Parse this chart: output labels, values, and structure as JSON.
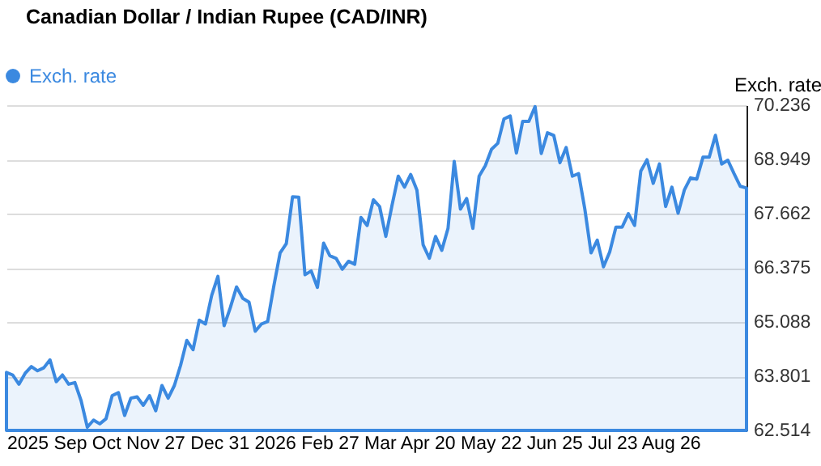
{
  "chart_data": {
    "type": "area",
    "title": "Canadian Dollar / Indian Rupee (CAD/INR)",
    "xlabel": "2025 Sep Oct Nov 27 Dec 31 2026 Feb 27 Mar Apr 20 May 22 Jun 25 Jul 23 Aug 26",
    "ylabel": "Exch. rate",
    "categories": [
      null,
      null,
      null,
      null,
      null,
      null,
      null,
      null,
      null,
      null,
      null,
      null,
      null,
      null,
      null,
      null,
      null,
      null,
      null,
      null,
      null,
      null,
      null,
      null,
      null,
      null,
      null,
      null,
      null,
      null,
      null,
      null,
      null,
      null,
      null,
      null,
      null,
      null,
      null,
      null,
      null,
      null,
      null,
      null,
      null,
      null,
      null,
      null,
      null,
      null,
      null,
      null,
      null,
      null,
      null,
      null,
      null,
      null,
      null,
      null,
      null,
      null,
      null,
      null,
      null,
      null,
      null,
      null,
      null,
      null,
      null,
      null,
      null,
      null,
      null,
      null,
      null,
      null,
      null,
      null,
      null,
      null,
      null,
      null,
      null,
      null,
      null,
      null,
      null,
      null,
      null,
      null,
      null,
      null,
      null,
      null,
      null,
      null,
      null,
      null,
      null,
      null,
      null,
      null,
      null,
      null,
      null,
      null,
      null,
      null,
      null,
      null,
      null,
      null,
      null,
      null,
      null,
      null,
      null,
      null
    ],
    "series": [
      {
        "name": "Exch. rate",
        "color": "#3b89e0",
        "values": [
          63.89,
          63.83,
          63.61,
          63.87,
          64.03,
          63.93,
          64.0,
          64.19,
          63.67,
          63.83,
          63.61,
          63.65,
          63.22,
          62.59,
          62.76,
          62.67,
          62.79,
          63.34,
          63.41,
          62.87,
          63.28,
          63.31,
          63.11,
          63.34,
          62.98,
          63.58,
          63.28,
          63.58,
          64.06,
          64.65,
          64.43,
          65.13,
          65.04,
          65.72,
          66.17,
          65.0,
          65.43,
          65.92,
          65.65,
          65.56,
          64.87,
          65.04,
          65.1,
          65.95,
          66.73,
          66.95,
          68.06,
          68.05,
          66.21,
          66.3,
          65.91,
          66.96,
          66.66,
          66.6,
          66.34,
          66.53,
          66.46,
          67.57,
          67.38,
          67.99,
          67.83,
          67.12,
          67.86,
          68.55,
          68.29,
          68.59,
          68.22,
          66.92,
          66.6,
          67.12,
          66.79,
          67.31,
          68.9,
          67.77,
          68.02,
          67.31,
          68.55,
          68.8,
          69.19,
          69.33,
          69.91,
          69.98,
          69.1,
          69.85,
          69.85,
          70.2,
          69.09,
          69.58,
          69.52,
          68.87,
          69.23,
          68.55,
          68.61,
          67.77,
          66.73,
          67.03,
          66.4,
          66.75,
          67.34,
          67.34,
          67.66,
          67.38,
          68.67,
          68.94,
          68.38,
          68.84,
          67.83,
          68.29,
          67.67,
          68.22,
          68.51,
          68.48,
          69.0,
          69.0,
          69.52,
          68.84,
          68.93,
          68.61,
          68.31,
          68.27
        ]
      }
    ],
    "ylim": [
      62.514,
      70.236
    ],
    "yticks": [
      62.514,
      63.801,
      65.088,
      66.375,
      67.662,
      68.949,
      70.236
    ],
    "grid": "y",
    "legend": "top left"
  }
}
